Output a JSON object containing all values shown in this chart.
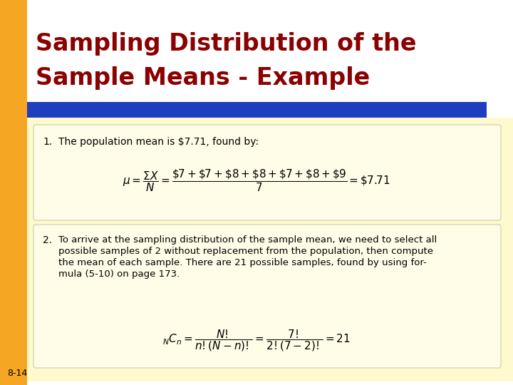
{
  "title_line1": "Sampling Distribution of the",
  "title_line2": "Sample Means - Example",
  "title_color": "#8B0000",
  "bg_color": "#FFFACD",
  "left_bar_color": "#F5A623",
  "blue_bar_color": "#1E3EBF",
  "slide_bg": "#FFFFFF",
  "slide_left_margin_color": "#F5A623",
  "page_number": "8-14",
  "point1_text": "The population mean is $7.71, found by:",
  "point2_text_line1": "To arrive at the sampling distribution of the sample mean, we need to select all",
  "point2_text_line2": "possible samples of 2 without replacement from the population, then compute",
  "point2_text_line3": "the mean of each sample. There are 21 possible samples, found by using for-",
  "point2_text_line4": "mula (5-10) on page 173."
}
